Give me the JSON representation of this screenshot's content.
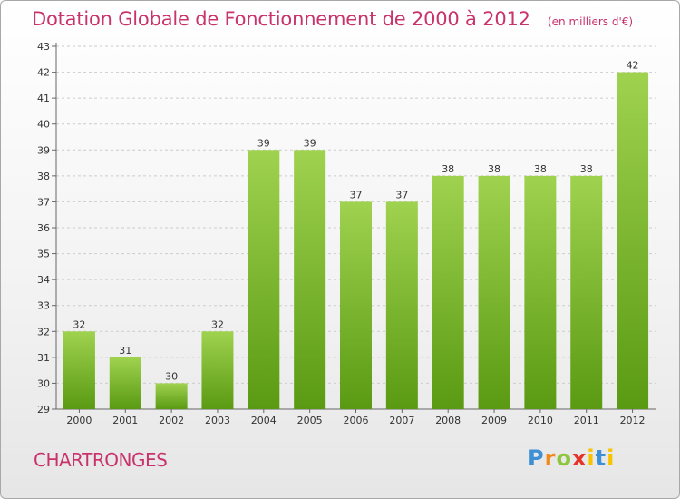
{
  "title": "Dotation Globale de Fonctionnement de 2000 à 2012",
  "unit": "(en milliers d'€)",
  "commune": "CHARTRONGES",
  "logo": {
    "p": "P",
    "r": "r",
    "o": "o",
    "x": "x",
    "i": "i",
    "t": "t",
    "i2": "i"
  },
  "colors": {
    "title": "#c8336c",
    "bar_top": "#9fd24f",
    "bar_bottom": "#5a9a12",
    "grid": "#cccccc"
  },
  "chart_data": {
    "type": "bar",
    "title": "Dotation Globale de Fonctionnement de 2000 à 2012",
    "xlabel": "",
    "ylabel": "",
    "categories": [
      "2000",
      "2001",
      "2002",
      "2003",
      "2004",
      "2005",
      "2006",
      "2007",
      "2008",
      "2009",
      "2010",
      "2011",
      "2012"
    ],
    "values": [
      32,
      31,
      30,
      32,
      39,
      39,
      37,
      37,
      38,
      38,
      38,
      38,
      42
    ],
    "ylim": [
      29,
      43
    ],
    "yticks": [
      29,
      30,
      31,
      32,
      33,
      34,
      35,
      36,
      37,
      38,
      39,
      40,
      41,
      42,
      43
    ],
    "grid": true,
    "legend": "none"
  }
}
